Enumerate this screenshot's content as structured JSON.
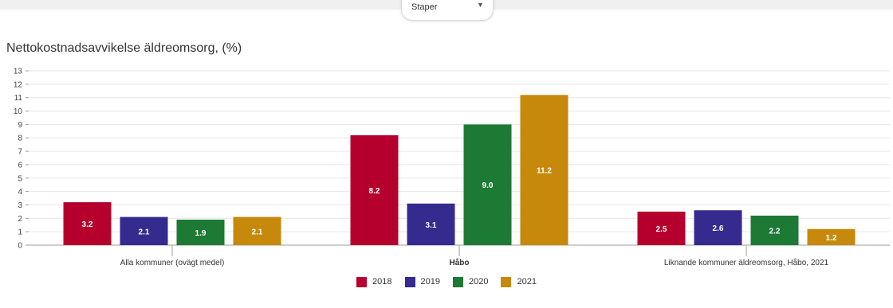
{
  "selector": {
    "label": "Staper"
  },
  "chart_data": {
    "type": "bar",
    "title": "Nettokostnadsavvikelse äldreomsorg, (%)",
    "xlabel": "",
    "ylabel": "",
    "ylim": [
      0,
      13
    ],
    "yticks": [
      0,
      1,
      2,
      3,
      4,
      5,
      6,
      7,
      8,
      9,
      10,
      11,
      12,
      13
    ],
    "grid": true,
    "legend_position": "bottom",
    "categories": [
      "Alla kommuner (ovägt medel)",
      "Håbo",
      "Liknande kommuner äldreomsorg, Håbo, 2021"
    ],
    "series": [
      {
        "name": "2018",
        "color": "#b5002e",
        "values": [
          3.2,
          8.2,
          2.5
        ]
      },
      {
        "name": "2019",
        "color": "#352b8f",
        "values": [
          2.1,
          3.1,
          2.6
        ]
      },
      {
        "name": "2020",
        "color": "#1d7a34",
        "values": [
          1.9,
          9.0,
          2.2
        ]
      },
      {
        "name": "2021",
        "color": "#c6890b",
        "values": [
          2.1,
          11.2,
          1.2
        ]
      }
    ]
  }
}
